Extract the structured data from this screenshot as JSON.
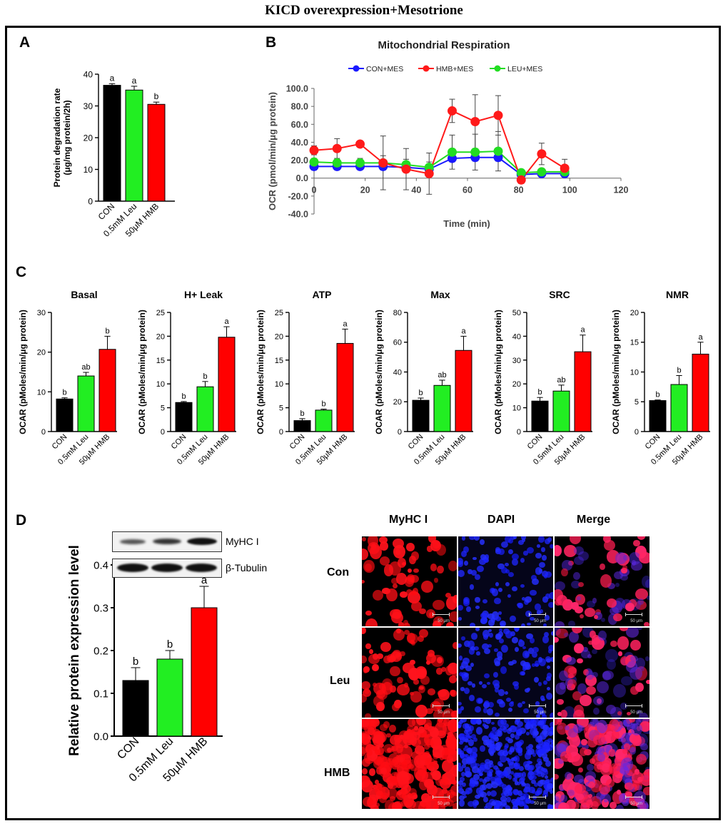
{
  "title": "KICD overexpression+Mesotrione",
  "panels": {
    "a": "A",
    "b": "B",
    "c": "C",
    "d": "D"
  },
  "colors": {
    "con": "#000000",
    "leu": "#22ee22",
    "hmb": "#ff0000",
    "con_line": "#1a1aff",
    "hmb_line": "#ff1a1a",
    "leu_line": "#22dd22"
  },
  "categories": [
    "CON",
    "0.5mM Leu",
    "50μM HMB"
  ],
  "chart_data": [
    {
      "id": "A",
      "type": "bar",
      "title": "",
      "ylabel": "Protein degradation rate\n(μg/mg protein/2h)",
      "categories": [
        "CON",
        "0.5mM Leu",
        "50μM HMB"
      ],
      "values": [
        36.5,
        35.0,
        30.5
      ],
      "errors": [
        0.5,
        1.2,
        0.7
      ],
      "letters": [
        "a",
        "a",
        "b"
      ],
      "ylim": [
        0,
        40
      ],
      "yticks": [
        0,
        10,
        20,
        30,
        40
      ]
    },
    {
      "id": "B",
      "type": "line",
      "title": "Mitochondrial Respiration",
      "xlabel": "Time (min)",
      "ylabel": "OCR (pmol/min/μg protein)",
      "xlim": [
        0,
        120
      ],
      "ylim": [
        -40,
        100
      ],
      "xticks": [
        0,
        20,
        40,
        60,
        80,
        100,
        120
      ],
      "yticks": [
        "-40.0",
        "-20.0",
        "0.0",
        "20.0",
        "40.0",
        "60.0",
        "80.0",
        "100.0"
      ],
      "x": [
        0,
        9,
        18,
        27,
        36,
        45,
        54,
        63,
        72,
        81,
        89,
        98
      ],
      "series": [
        {
          "name": "CON+MES",
          "values": [
            13,
            13,
            13,
            13,
            12,
            10,
            22,
            23,
            23,
            4,
            5,
            5
          ],
          "errors": [
            4,
            3,
            3,
            3,
            3,
            4,
            4,
            4,
            4,
            2,
            2,
            2
          ]
        },
        {
          "name": "HMB+MES",
          "values": [
            31,
            33,
            38,
            17,
            10,
            5,
            75,
            63,
            70,
            -2,
            27,
            11
          ],
          "errors": [
            5,
            11,
            3,
            30,
            23,
            23,
            13,
            30,
            22,
            4,
            12,
            10
          ]
        },
        {
          "name": "LEU+MES",
          "values": [
            18,
            17,
            17,
            17,
            15,
            12,
            29,
            29,
            30,
            6,
            7,
            7
          ],
          "errors": [
            4,
            4,
            5,
            8,
            6,
            6,
            19,
            20,
            22,
            3,
            3,
            3
          ]
        }
      ]
    },
    {
      "id": "C-Basal",
      "type": "bar",
      "title": "Basal",
      "ylabel": "OCAR (pMoles/min/μg protein)",
      "categories": [
        "CON",
        "0.5mM Leu",
        "50μM HMB"
      ],
      "values": [
        8.2,
        14.0,
        20.7
      ],
      "errors": [
        0.3,
        0.9,
        3.3
      ],
      "letters": [
        "b",
        "ab",
        "b"
      ],
      "ylim": [
        0,
        30
      ],
      "yticks": [
        0,
        10,
        20,
        30
      ]
    },
    {
      "id": "C-H+Leak",
      "type": "bar",
      "title": "H+ Leak",
      "ylabel": "OCAR (pMoles/min/μg protein)",
      "categories": [
        "CON",
        "0.5mM Leu",
        "50μM HMB"
      ],
      "values": [
        6.1,
        9.4,
        19.8
      ],
      "errors": [
        0.2,
        1.1,
        2.2
      ],
      "letters": [
        "b",
        "b",
        "a"
      ],
      "ylim": [
        0,
        25
      ],
      "yticks": [
        0,
        5,
        10,
        15,
        20,
        25
      ]
    },
    {
      "id": "C-ATP",
      "type": "bar",
      "title": "ATP",
      "ylabel": "OCAR (pMoles/min/μg protein)",
      "categories": [
        "CON",
        "0.5mM Leu",
        "50μM HMB"
      ],
      "values": [
        2.3,
        4.5,
        18.5
      ],
      "errors": [
        0.4,
        0.2,
        3.0
      ],
      "letters": [
        "b",
        "b",
        "a"
      ],
      "ylim": [
        0,
        25
      ],
      "yticks": [
        0,
        5,
        10,
        15,
        20,
        25
      ]
    },
    {
      "id": "C-Max",
      "type": "bar",
      "title": "Max",
      "ylabel": "OCAR (pMoles/min/μg protein)",
      "categories": [
        "CON",
        "0.5mM Leu",
        "50μM HMB"
      ],
      "values": [
        21.0,
        31.0,
        54.5
      ],
      "errors": [
        1.5,
        3.5,
        9.5
      ],
      "letters": [
        "b",
        "ab",
        "a"
      ],
      "ylim": [
        0,
        80
      ],
      "yticks": [
        0,
        20,
        40,
        60,
        80
      ]
    },
    {
      "id": "C-SRC",
      "type": "bar",
      "title": "SRC",
      "ylabel": "OCAR (pMoles/min/μg protein)",
      "categories": [
        "CON",
        "0.5mM Leu",
        "50μM HMB"
      ],
      "values": [
        12.8,
        17.0,
        33.5
      ],
      "errors": [
        1.5,
        2.5,
        7.0
      ],
      "letters": [
        "b",
        "ab",
        "a"
      ],
      "ylim": [
        0,
        50
      ],
      "yticks": [
        0,
        10,
        20,
        30,
        40,
        50
      ]
    },
    {
      "id": "C-NMR",
      "type": "bar",
      "title": "NMR",
      "ylabel": "OCAR (pMoles/min/μg protein)",
      "categories": [
        "CON",
        "0.5mM Leu",
        "50μM HMB"
      ],
      "values": [
        5.2,
        7.9,
        13.0
      ],
      "errors": [
        0.1,
        1.5,
        2.0
      ],
      "letters": [
        "b",
        "b",
        "a"
      ],
      "ylim": [
        0,
        20
      ],
      "yticks": [
        0,
        5,
        10,
        15,
        20
      ]
    },
    {
      "id": "D",
      "type": "bar",
      "title": "",
      "ylabel": "Relative protein expression level",
      "categories": [
        "CON",
        "0.5mM Leu",
        "50μM HMB"
      ],
      "values": [
        0.13,
        0.18,
        0.3
      ],
      "errors": [
        0.03,
        0.02,
        0.05
      ],
      "letters": [
        "b",
        "b",
        "a"
      ],
      "ylim": [
        0,
        0.4
      ],
      "yticks": [
        "0.0",
        "0.1",
        "0.2",
        "0.3",
        "0.4"
      ]
    }
  ],
  "western": {
    "band1": "MyHC I",
    "band2": "β-Tubulin"
  },
  "microscopy": {
    "columns": [
      "MyHC I",
      "DAPI",
      "Merge"
    ],
    "rows": [
      "Con",
      "Leu",
      "HMB"
    ],
    "scale": "50 μm"
  }
}
